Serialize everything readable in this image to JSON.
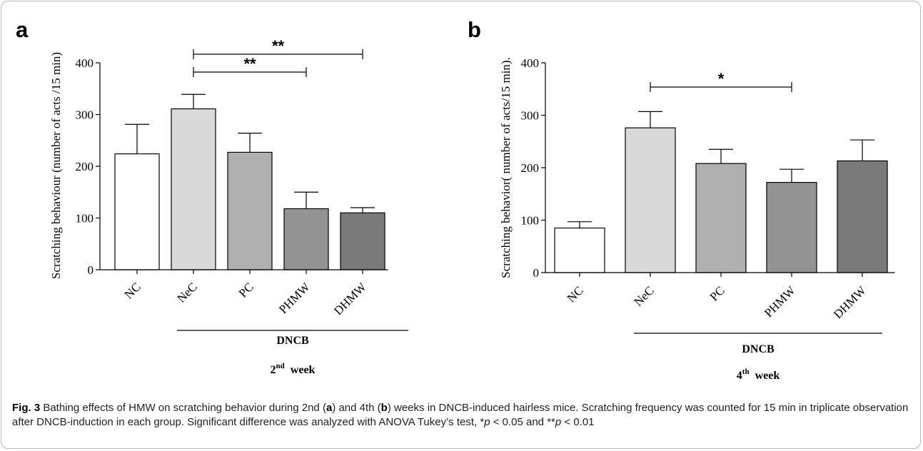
{
  "figure": {
    "caption": {
      "fig_label": "Fig. 3",
      "text_before_a": " Bathing effects of HMW on scratching behavior during 2nd (",
      "a": "a",
      "text_between": ") and 4th (",
      "b": "b",
      "text_after_b": ") weeks in DNCB-induced hairless mice. Scratching frequency was counted for 15 min in triplicate observation after DNCB-induction in each group. Significant difference was analyzed with ANOVA Tukey’s test, ",
      "p1_prefix": "*",
      "p1_var": "p",
      "p1_rest": " < 0.05 and ",
      "p2_prefix": "**",
      "p2_var": "p",
      "p2_rest": " < 0.01"
    }
  },
  "chart_data": [
    {
      "type": "bar",
      "panel": "a",
      "categories": [
        "NC",
        "NeC",
        "PC",
        "PHMW",
        "DHMW"
      ],
      "values": [
        224,
        311,
        227,
        118,
        110
      ],
      "errors": [
        57,
        28,
        37,
        32,
        10
      ],
      "colors": [
        "#ffffff",
        "#d9d9d9",
        "#b0b0b0",
        "#939393",
        "#7a7a7a"
      ],
      "ylabel": "Scratching behaviour (number of acts /15 min)",
      "ylim": [
        0,
        400
      ],
      "yticks": [
        "0",
        "100",
        "200",
        "300",
        "400"
      ],
      "group_label": "DNCB",
      "week_num": "2",
      "week_sup": "nd",
      "week_word": "week",
      "significance": [
        {
          "from": "NeC",
          "to": "DHMW",
          "label": "**"
        },
        {
          "from": "NeC",
          "to": "PHMW",
          "label": "**"
        }
      ]
    },
    {
      "type": "bar",
      "panel": "b",
      "categories": [
        "NC",
        "NeC",
        "PC",
        "PHMW",
        "DHMW"
      ],
      "values": [
        85,
        276,
        208,
        172,
        213
      ],
      "errors": [
        12,
        31,
        27,
        25,
        40
      ],
      "colors": [
        "#ffffff",
        "#d9d9d9",
        "#b0b0b0",
        "#939393",
        "#7a7a7a"
      ],
      "ylabel": "Scratching behavior( number of acts/15 min).",
      "ylim": [
        0,
        400
      ],
      "yticks": [
        "0",
        "100",
        "200",
        "300",
        "400"
      ],
      "group_label": "DNCB",
      "week_num": "4",
      "week_sup": "th",
      "week_word": "week",
      "significance": [
        {
          "from": "NeC",
          "to": "PHMW",
          "label": "*"
        }
      ]
    }
  ]
}
